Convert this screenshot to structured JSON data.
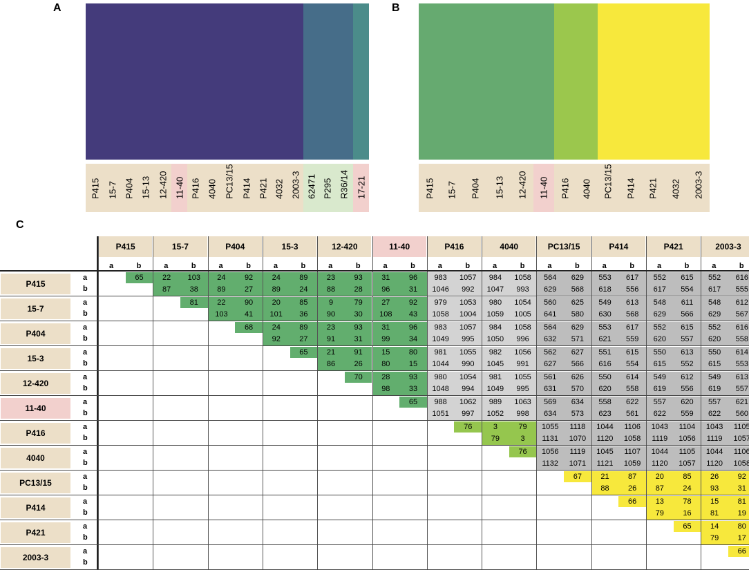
{
  "title": "",
  "panel_labels": {
    "a": "A",
    "b": "B",
    "c": "C"
  },
  "colors": {
    "dark": "#443b7b",
    "blue": "#466d89",
    "teal": "#4b8c8a",
    "green": "#66aa70",
    "lime": "#9bc74d",
    "yellow": "#f7e83c"
  },
  "chart_data": [
    {
      "type": "heatmap",
      "title": "A",
      "categories": [
        "P415",
        "15-7",
        "P404",
        "15-13",
        "12-420",
        "11-40",
        "P416",
        "4040",
        "PC13/15",
        "P414",
        "P421",
        "4032",
        "2003-3",
        "62471",
        "P295",
        "R36/14",
        "17-21"
      ],
      "groups": [
        {
          "color": "#443b7b",
          "members": [
            "P415",
            "15-7",
            "P404",
            "15-13",
            "12-420",
            "11-40",
            "P416",
            "4040",
            "PC13/15",
            "P414",
            "P421",
            "4032",
            "2003-3"
          ]
        },
        {
          "color": "#466d89",
          "members": [
            "62471",
            "P295",
            "R36/14"
          ]
        },
        {
          "color": "#4b8c8a",
          "members": [
            "17-21"
          ]
        }
      ],
      "highlight": {
        "pink": [
          "11-40",
          "17-21"
        ],
        "green": [
          "62471",
          "P295",
          "R36/14"
        ]
      }
    },
    {
      "type": "heatmap",
      "title": "B",
      "categories": [
        "P415",
        "15-7",
        "P404",
        "15-13",
        "12-420",
        "11-40",
        "P416",
        "4040",
        "PC13/15",
        "P414",
        "P421",
        "4032",
        "2003-3"
      ],
      "groups": [
        {
          "color": "#66aa70",
          "members": [
            "P415",
            "15-7",
            "P404",
            "15-13",
            "12-420",
            "11-40"
          ]
        },
        {
          "color": "#9bc74d",
          "members": [
            "P416",
            "4040"
          ]
        },
        {
          "color": "#f7e83c",
          "members": [
            "PC13/15",
            "P414",
            "P421",
            "4032",
            "2003-3"
          ]
        }
      ],
      "highlight": {
        "pink": [
          "11-40"
        ]
      }
    },
    {
      "type": "table",
      "title": "C",
      "columns": [
        "P415",
        "15-7",
        "P404",
        "15-3",
        "12-420",
        "11-40",
        "P416",
        "4040",
        "PC13/15",
        "P414",
        "P421",
        "2003-3"
      ],
      "subcolumns": [
        "a",
        "b"
      ],
      "rows": [
        "P415",
        "15-7",
        "P404",
        "15-3",
        "12-420",
        "11-40",
        "P416",
        "4040",
        "PC13/15",
        "P414",
        "P421",
        "2003-3"
      ],
      "pink": [
        "11-40"
      ],
      "cells": [
        {
          "r": 0,
          "c": 0,
          "vals": [
            "65",
            ""
          ]
        },
        {
          "r": 0,
          "c": 1,
          "vals": [
            "22",
            "103",
            "87",
            "38"
          ]
        },
        {
          "r": 0,
          "c": 2,
          "vals": [
            "24",
            "92",
            "89",
            "27"
          ]
        },
        {
          "r": 0,
          "c": 3,
          "vals": [
            "24",
            "89",
            "89",
            "24"
          ]
        },
        {
          "r": 0,
          "c": 4,
          "vals": [
            "23",
            "93",
            "88",
            "28"
          ]
        },
        {
          "r": 0,
          "c": 5,
          "vals": [
            "31",
            "96",
            "96",
            "31"
          ]
        },
        {
          "r": 0,
          "c": 6,
          "vals": [
            "983",
            "1057",
            "1046",
            "992"
          ]
        },
        {
          "r": 0,
          "c": 7,
          "vals": [
            "984",
            "1058",
            "1047",
            "993"
          ]
        },
        {
          "r": 0,
          "c": 8,
          "vals": [
            "564",
            "629",
            "629",
            "568"
          ]
        },
        {
          "r": 0,
          "c": 9,
          "vals": [
            "553",
            "617",
            "618",
            "556"
          ]
        },
        {
          "r": 0,
          "c": 10,
          "vals": [
            "552",
            "615",
            "617",
            "554"
          ]
        },
        {
          "r": 0,
          "c": 11,
          "vals": [
            "552",
            "616",
            "617",
            "555"
          ]
        },
        {
          "r": 1,
          "c": 1,
          "vals": [
            "81",
            ""
          ]
        },
        {
          "r": 1,
          "c": 2,
          "vals": [
            "22",
            "90",
            "103",
            "41"
          ]
        },
        {
          "r": 1,
          "c": 3,
          "vals": [
            "20",
            "85",
            "101",
            "36"
          ]
        },
        {
          "r": 1,
          "c": 4,
          "vals": [
            "9",
            "79",
            "90",
            "30"
          ]
        },
        {
          "r": 1,
          "c": 5,
          "vals": [
            "27",
            "92",
            "108",
            "43"
          ]
        },
        {
          "r": 1,
          "c": 6,
          "vals": [
            "979",
            "1053",
            "1058",
            "1004"
          ]
        },
        {
          "r": 1,
          "c": 7,
          "vals": [
            "980",
            "1054",
            "1059",
            "1005"
          ]
        },
        {
          "r": 1,
          "c": 8,
          "vals": [
            "560",
            "625",
            "641",
            "580"
          ]
        },
        {
          "r": 1,
          "c": 9,
          "vals": [
            "549",
            "613",
            "630",
            "568"
          ]
        },
        {
          "r": 1,
          "c": 10,
          "vals": [
            "548",
            "611",
            "629",
            "566"
          ]
        },
        {
          "r": 1,
          "c": 11,
          "vals": [
            "548",
            "612",
            "629",
            "567"
          ]
        },
        {
          "r": 2,
          "c": 2,
          "vals": [
            "68",
            ""
          ]
        },
        {
          "r": 2,
          "c": 3,
          "vals": [
            "24",
            "89",
            "92",
            "27"
          ]
        },
        {
          "r": 2,
          "c": 4,
          "vals": [
            "23",
            "93",
            "91",
            "31"
          ]
        },
        {
          "r": 2,
          "c": 5,
          "vals": [
            "31",
            "96",
            "99",
            "34"
          ]
        },
        {
          "r": 2,
          "c": 6,
          "vals": [
            "983",
            "1057",
            "1049",
            "995"
          ]
        },
        {
          "r": 2,
          "c": 7,
          "vals": [
            "984",
            "1058",
            "1050",
            "996"
          ]
        },
        {
          "r": 2,
          "c": 8,
          "vals": [
            "564",
            "629",
            "632",
            "571"
          ]
        },
        {
          "r": 2,
          "c": 9,
          "vals": [
            "553",
            "617",
            "621",
            "559"
          ]
        },
        {
          "r": 2,
          "c": 10,
          "vals": [
            "552",
            "615",
            "620",
            "557"
          ]
        },
        {
          "r": 2,
          "c": 11,
          "vals": [
            "552",
            "616",
            "620",
            "558"
          ]
        },
        {
          "r": 3,
          "c": 3,
          "vals": [
            "65",
            ""
          ]
        },
        {
          "r": 3,
          "c": 4,
          "vals": [
            "21",
            "91",
            "86",
            "26"
          ]
        },
        {
          "r": 3,
          "c": 5,
          "vals": [
            "15",
            "80",
            "80",
            "15"
          ]
        },
        {
          "r": 3,
          "c": 6,
          "vals": [
            "981",
            "1055",
            "1044",
            "990"
          ]
        },
        {
          "r": 3,
          "c": 7,
          "vals": [
            "982",
            "1056",
            "1045",
            "991"
          ]
        },
        {
          "r": 3,
          "c": 8,
          "vals": [
            "562",
            "627",
            "627",
            "566"
          ]
        },
        {
          "r": 3,
          "c": 9,
          "vals": [
            "551",
            "615",
            "616",
            "554"
          ]
        },
        {
          "r": 3,
          "c": 10,
          "vals": [
            "550",
            "613",
            "615",
            "552"
          ]
        },
        {
          "r": 3,
          "c": 11,
          "vals": [
            "550",
            "614",
            "615",
            "553"
          ]
        },
        {
          "r": 4,
          "c": 4,
          "vals": [
            "70",
            ""
          ]
        },
        {
          "r": 4,
          "c": 5,
          "vals": [
            "28",
            "93",
            "98",
            "33"
          ]
        },
        {
          "r": 4,
          "c": 6,
          "vals": [
            "980",
            "1054",
            "1048",
            "994"
          ]
        },
        {
          "r": 4,
          "c": 7,
          "vals": [
            "981",
            "1055",
            "1049",
            "995"
          ]
        },
        {
          "r": 4,
          "c": 8,
          "vals": [
            "561",
            "626",
            "631",
            "570"
          ]
        },
        {
          "r": 4,
          "c": 9,
          "vals": [
            "550",
            "614",
            "620",
            "558"
          ]
        },
        {
          "r": 4,
          "c": 10,
          "vals": [
            "549",
            "612",
            "619",
            "556"
          ]
        },
        {
          "r": 4,
          "c": 11,
          "vals": [
            "549",
            "613",
            "619",
            "557"
          ]
        },
        {
          "r": 5,
          "c": 5,
          "vals": [
            "65",
            ""
          ]
        },
        {
          "r": 5,
          "c": 6,
          "vals": [
            "988",
            "1062",
            "1051",
            "997"
          ]
        },
        {
          "r": 5,
          "c": 7,
          "vals": [
            "989",
            "1063",
            "1052",
            "998"
          ]
        },
        {
          "r": 5,
          "c": 8,
          "vals": [
            "569",
            "634",
            "634",
            "573"
          ]
        },
        {
          "r": 5,
          "c": 9,
          "vals": [
            "558",
            "622",
            "623",
            "561"
          ]
        },
        {
          "r": 5,
          "c": 10,
          "vals": [
            "557",
            "620",
            "622",
            "559"
          ]
        },
        {
          "r": 5,
          "c": 11,
          "vals": [
            "557",
            "621",
            "622",
            "560"
          ]
        },
        {
          "r": 6,
          "c": 6,
          "vals": [
            "76",
            ""
          ]
        },
        {
          "r": 6,
          "c": 7,
          "vals": [
            "3",
            "79",
            "79",
            "3"
          ]
        },
        {
          "r": 6,
          "c": 8,
          "vals": [
            "1055",
            "1118",
            "1131",
            "1070"
          ]
        },
        {
          "r": 6,
          "c": 9,
          "vals": [
            "1044",
            "1106",
            "1120",
            "1058"
          ]
        },
        {
          "r": 6,
          "c": 10,
          "vals": [
            "1043",
            "1104",
            "1119",
            "1056"
          ]
        },
        {
          "r": 6,
          "c": 11,
          "vals": [
            "1043",
            "1105",
            "1119",
            "1057"
          ]
        },
        {
          "r": 7,
          "c": 7,
          "vals": [
            "76",
            ""
          ]
        },
        {
          "r": 7,
          "c": 8,
          "vals": [
            "1056",
            "1119",
            "1132",
            "1071"
          ]
        },
        {
          "r": 7,
          "c": 9,
          "vals": [
            "1045",
            "1107",
            "1121",
            "1059"
          ]
        },
        {
          "r": 7,
          "c": 10,
          "vals": [
            "1044",
            "1105",
            "1120",
            "1057"
          ]
        },
        {
          "r": 7,
          "c": 11,
          "vals": [
            "1044",
            "1106",
            "1120",
            "1058"
          ]
        },
        {
          "r": 8,
          "c": 8,
          "vals": [
            "67",
            ""
          ]
        },
        {
          "r": 8,
          "c": 9,
          "vals": [
            "21",
            "87",
            "88",
            "26"
          ]
        },
        {
          "r": 8,
          "c": 10,
          "vals": [
            "20",
            "85",
            "87",
            "24"
          ]
        },
        {
          "r": 8,
          "c": 11,
          "vals": [
            "26",
            "92",
            "93",
            "31"
          ]
        },
        {
          "r": 9,
          "c": 9,
          "vals": [
            "66",
            ""
          ]
        },
        {
          "r": 9,
          "c": 10,
          "vals": [
            "13",
            "78",
            "79",
            "16"
          ]
        },
        {
          "r": 9,
          "c": 11,
          "vals": [
            "15",
            "81",
            "81",
            "19"
          ]
        },
        {
          "r": 10,
          "c": 10,
          "vals": [
            "65",
            ""
          ]
        },
        {
          "r": 10,
          "c": 11,
          "vals": [
            "14",
            "80",
            "79",
            "17"
          ]
        },
        {
          "r": 11,
          "c": 11,
          "vals": [
            "66",
            ""
          ]
        }
      ]
    }
  ]
}
